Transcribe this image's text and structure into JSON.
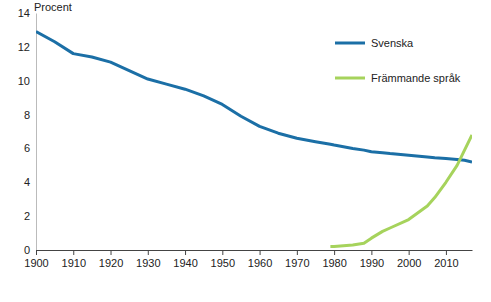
{
  "chart_data": {
    "type": "line",
    "y_label": "Procent",
    "x": [
      1900,
      1905,
      1910,
      1915,
      1920,
      1925,
      1930,
      1935,
      1940,
      1945,
      1950,
      1955,
      1960,
      1965,
      1970,
      1975,
      1979,
      1980,
      1985,
      1988,
      1990,
      1993,
      1995,
      2000,
      2005,
      2007,
      2010,
      2013,
      2015,
      2017
    ],
    "series": [
      {
        "name": "Svenska",
        "color": "#1b6fa6",
        "values": [
          12.9,
          12.3,
          11.6,
          11.4,
          11.1,
          10.6,
          10.1,
          9.8,
          9.5,
          9.1,
          8.6,
          7.9,
          7.3,
          6.9,
          6.6,
          6.4,
          6.25,
          6.2,
          6.0,
          5.9,
          5.8,
          5.75,
          5.7,
          5.6,
          5.5,
          5.45,
          5.4,
          5.35,
          5.3,
          5.2
        ]
      },
      {
        "name": "Främmande språk",
        "color": "#a6d35c",
        "values": [
          null,
          null,
          null,
          null,
          null,
          null,
          null,
          null,
          null,
          null,
          null,
          null,
          null,
          null,
          null,
          null,
          0.2,
          0.2,
          0.3,
          0.4,
          0.7,
          1.1,
          1.3,
          1.8,
          2.6,
          3.1,
          4.0,
          5.0,
          5.9,
          6.8
        ]
      }
    ],
    "xlim": [
      1900,
      2017
    ],
    "xticks": [
      1900,
      1910,
      1920,
      1930,
      1940,
      1950,
      1960,
      1970,
      1980,
      1990,
      2000,
      2010
    ],
    "ylim": [
      0,
      14
    ],
    "yticks": [
      0,
      2,
      4,
      6,
      8,
      10,
      12,
      14
    ],
    "grid": false,
    "legend": "top-right"
  }
}
